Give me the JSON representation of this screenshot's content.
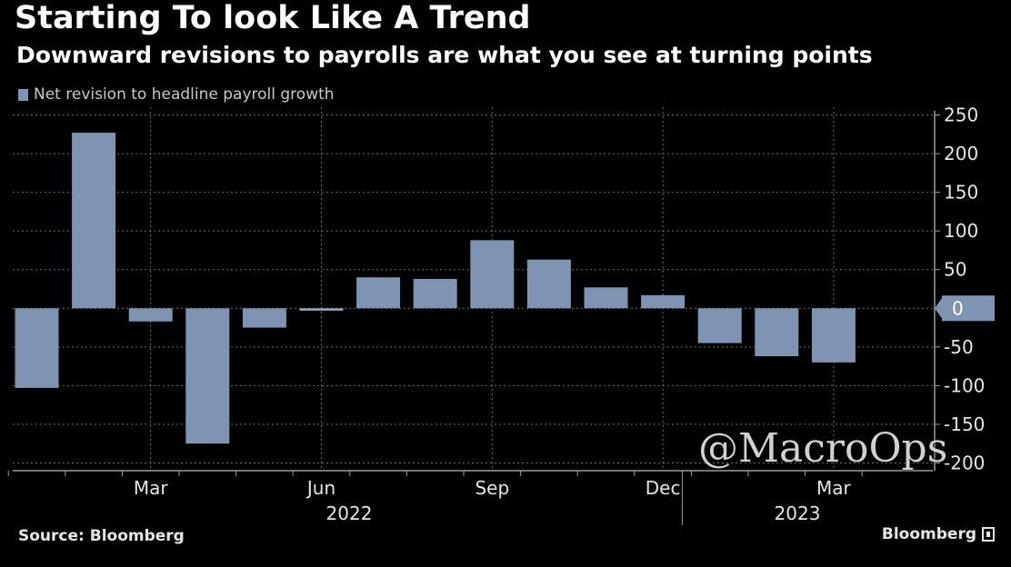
{
  "header": {
    "title": "Starting To look Like A Trend",
    "subtitle": "Downward revisions to payrolls are what you see at turning points"
  },
  "legend": {
    "label": "Net revision to headline payroll growth"
  },
  "footer": {
    "source": "Source: Bloomberg",
    "brand": "Bloomberg"
  },
  "watermark": {
    "text": "@MacroOps"
  },
  "colors": {
    "bar": "#7f94b3",
    "background": "#000000",
    "grid": "#6a6a6a",
    "axis": "#9a9a9a",
    "text": "#ffffff"
  },
  "chart_data": {
    "type": "bar",
    "title": "Starting To look Like A Trend",
    "categories": [
      "2022-01",
      "2022-02",
      "2022-03",
      "2022-04",
      "2022-05",
      "2022-06",
      "2022-07",
      "2022-08",
      "2022-09",
      "2022-10",
      "2022-11",
      "2022-12",
      "2023-01",
      "2023-02",
      "2023-03",
      "2023-04"
    ],
    "series": [
      {
        "name": "Net revision to headline payroll growth",
        "values": [
          -103,
          227,
          -17,
          -175,
          -25,
          -3,
          40,
          38,
          88,
          63,
          27,
          17,
          -45,
          -62,
          -70,
          null
        ]
      }
    ],
    "latest_value": 0,
    "latest_label": "0",
    "ylim": [
      -210,
      260
    ],
    "yticks": [
      250,
      200,
      150,
      100,
      50,
      0,
      -50,
      -100,
      -150,
      -200
    ],
    "ytick_labels": [
      "250",
      "200",
      "150",
      "100",
      "50",
      "0",
      "-50",
      "-100",
      "-150",
      "-200"
    ],
    "xticks": [
      {
        "index": 2,
        "label": "Mar"
      },
      {
        "index": 5,
        "label": "Jun"
      },
      {
        "index": 8,
        "label": "Sep"
      },
      {
        "index": 11,
        "label": "Dec"
      },
      {
        "index": 14,
        "label": "Mar"
      }
    ],
    "year_labels": [
      {
        "label": "2022",
        "from": 0,
        "to": 11
      },
      {
        "label": "2023",
        "from": 12,
        "to": 15
      }
    ],
    "xlabel": "",
    "ylabel": "",
    "legend_position": "top-left"
  }
}
